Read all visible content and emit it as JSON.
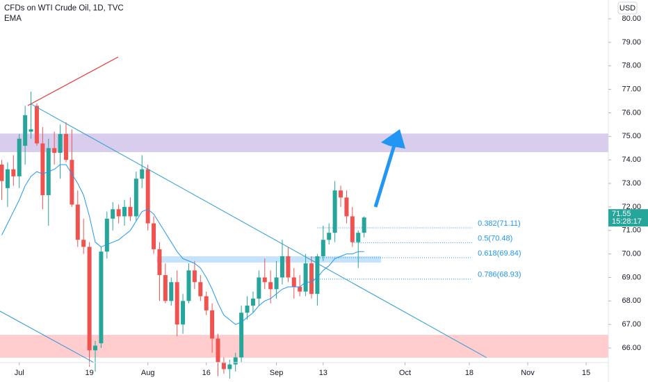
{
  "chart_data": {
    "type": "candlestick",
    "title": "CFDs on WTI Crude Oil, 1D, TVC",
    "indicator": "EMA",
    "currency": "USD",
    "up_color": "#26a69a",
    "down_color": "#ef5350",
    "x": [
      -3,
      -2,
      -1,
      0,
      1,
      2,
      3,
      4,
      5,
      6,
      7,
      8,
      9,
      10,
      11,
      12,
      13,
      14,
      15,
      16,
      17,
      18,
      19,
      20,
      21,
      22,
      23,
      24,
      25,
      26,
      27,
      28,
      29,
      30,
      31,
      32,
      33,
      34,
      35,
      36,
      37,
      38,
      39,
      40,
      41,
      42,
      43,
      44,
      45,
      46,
      47,
      48,
      49,
      50,
      51,
      52,
      53,
      54,
      55,
      56,
      57,
      58,
      59
    ],
    "open": [
      73.8,
      72.8,
      73.6,
      73.3,
      74.6,
      75.2,
      76.3,
      74.7,
      72.5,
      74.5,
      74.3,
      75.1,
      74.0,
      72.1,
      70.6,
      70.3,
      65.9,
      66.2,
      70.1,
      71.5,
      71.9,
      71.6,
      72.0,
      71.6,
      73.2,
      73.6,
      71.3,
      70.2,
      69.1,
      68.0,
      68.8,
      67.0,
      68.0,
      69.3,
      68.8,
      68.2,
      67.6,
      66.4,
      65.4,
      65.1,
      65.3,
      65.6,
      67.5,
      67.8,
      68.1,
      69.0,
      68.8,
      68.5,
      69.0,
      69.9,
      69.0,
      68.6,
      68.4,
      69.6,
      68.3,
      69.9,
      70.6,
      70.9,
      72.7,
      72.4,
      71.6,
      70.5,
      70.9
    ],
    "high": [
      74.0,
      73.9,
      74.2,
      75.1,
      76.3,
      76.9,
      76.4,
      75.4,
      74.9,
      75.2,
      75.5,
      75.6,
      75.3,
      72.7,
      71.5,
      70.5,
      66.3,
      70.3,
      71.8,
      72.2,
      72.1,
      72.3,
      72.4,
      73.5,
      74.2,
      73.8,
      71.6,
      70.5,
      69.6,
      69.0,
      69.3,
      68.3,
      69.6,
      69.7,
      69.1,
      68.4,
      67.9,
      66.6,
      65.6,
      65.5,
      65.8,
      67.8,
      68.2,
      68.4,
      69.3,
      69.8,
      69.3,
      69.7,
      70.6,
      70.3,
      69.4,
      69.1,
      70.0,
      69.9,
      70.0,
      71.2,
      71.3,
      73.1,
      72.9,
      72.7,
      72.0,
      71.0,
      71.6
    ],
    "low": [
      72.3,
      72.0,
      72.9,
      72.8,
      73.8,
      74.9,
      74.6,
      71.9,
      71.2,
      73.8,
      73.2,
      73.9,
      72.0,
      70.3,
      70.0,
      65.2,
      65.0,
      66.0,
      69.8,
      71.0,
      71.3,
      71.2,
      71.4,
      71.4,
      72.8,
      71.0,
      70.0,
      68.0,
      67.9,
      67.8,
      66.5,
      66.6,
      67.9,
      68.5,
      68.0,
      67.4,
      65.8,
      64.8,
      64.9,
      64.7,
      65.0,
      65.4,
      67.2,
      67.5,
      67.8,
      68.5,
      67.9,
      68.1,
      68.7,
      68.8,
      68.1,
      68.2,
      68.2,
      68.1,
      67.8,
      69.7,
      70.4,
      70.5,
      72.0,
      71.3,
      70.3,
      69.4,
      70.7
    ],
    "close": [
      73.1,
      73.6,
      73.3,
      74.9,
      75.9,
      75.3,
      74.7,
      72.5,
      74.5,
      74.3,
      75.1,
      74.0,
      72.1,
      70.6,
      70.3,
      65.9,
      66.1,
      70.1,
      71.5,
      71.9,
      71.6,
      72.0,
      71.6,
      73.2,
      73.6,
      71.3,
      70.2,
      69.1,
      68.0,
      68.8,
      67.0,
      68.0,
      69.3,
      68.8,
      68.2,
      67.6,
      66.4,
      65.4,
      65.1,
      65.3,
      65.6,
      67.5,
      67.8,
      68.1,
      69.0,
      68.8,
      68.5,
      69.0,
      69.9,
      69.0,
      68.6,
      68.4,
      69.6,
      68.3,
      69.9,
      70.6,
      70.9,
      72.7,
      72.4,
      71.6,
      70.5,
      70.9,
      71.55
    ],
    "ema": {
      "name": "EMA",
      "color": "#2196f3",
      "values": [
        70.8,
        71.3,
        71.8,
        72.3,
        72.9,
        73.3,
        73.5,
        73.4,
        73.5,
        73.6,
        73.8,
        73.8,
        73.4,
        73.0,
        72.5,
        71.6,
        70.5,
        70.3,
        70.4,
        70.5,
        70.6,
        70.8,
        71.0,
        71.4,
        71.8,
        71.9,
        71.7,
        71.3,
        70.9,
        70.5,
        70.1,
        69.8,
        69.7,
        69.6,
        69.4,
        69.0,
        68.5,
        67.9,
        67.4,
        67.2,
        67.0,
        67.1,
        67.3,
        67.5,
        67.8,
        68.0,
        68.1,
        68.3,
        68.5,
        68.6,
        68.6,
        68.6,
        68.8,
        68.8,
        69.0,
        69.3,
        69.5,
        69.8,
        69.9,
        70.0,
        70.0,
        70.1,
        70.1
      ]
    },
    "xlim": [
      -3.3,
      100.8
    ],
    "xticks": [
      {
        "value": 0,
        "label": "Jul"
      },
      {
        "value": 12,
        "label": "19"
      },
      {
        "value": 22,
        "label": "Aug"
      },
      {
        "value": 32,
        "label": "16"
      },
      {
        "value": 44,
        "label": "Sep"
      },
      {
        "value": 52,
        "label": "13"
      },
      {
        "value": 66,
        "label": "Oct"
      },
      {
        "value": 77,
        "label": "18"
      },
      {
        "value": 87,
        "label": "Nov"
      },
      {
        "value": 97,
        "label": "15"
      }
    ],
    "ylim": [
      65.38,
      80.8
    ],
    "yticks": [
      {
        "value": 66,
        "label": "66.00"
      },
      {
        "value": 67,
        "label": "67.00"
      },
      {
        "value": 68,
        "label": "68.00"
      },
      {
        "value": 69,
        "label": "69.00"
      },
      {
        "value": 70,
        "label": "70.00"
      },
      {
        "value": 71,
        "label": "71.00"
      },
      {
        "value": 72,
        "label": "72.00"
      },
      {
        "value": 73,
        "label": "73.00"
      },
      {
        "value": 74,
        "label": "74.00"
      },
      {
        "value": 75,
        "label": "75.00"
      },
      {
        "value": 76,
        "label": "76.00"
      },
      {
        "value": 77,
        "label": "77.00"
      },
      {
        "value": 78,
        "label": "78.00"
      },
      {
        "value": 79,
        "label": "79.00"
      },
      {
        "value": 80,
        "label": "80.00"
      }
    ],
    "zones": [
      {
        "ymin": 74.33,
        "ymax": 75.12,
        "color": "#d1c4e9"
      },
      {
        "ymin": 65.59,
        "ymax": 66.56,
        "color": "#ffc4c4"
      },
      {
        "ymin": 69.63,
        "ymax": 69.9,
        "xmin": 23.5,
        "xmax": 61.9,
        "color": "#bbdefb"
      }
    ],
    "fib_levels": [
      {
        "value": 71.11,
        "label": "0.382(71.11)",
        "from": 51
      },
      {
        "value": 70.48,
        "label": "0.5(70.48)",
        "from": 57
      },
      {
        "value": 69.84,
        "label": "0.618(69.84)",
        "from": 50
      },
      {
        "value": 68.93,
        "label": "0.786(68.93)",
        "from": 50
      }
    ],
    "fib_end": 77.5,
    "price_tag": {
      "value": 71.55,
      "label": "71.55",
      "countdown": "15:28:17"
    }
  }
}
